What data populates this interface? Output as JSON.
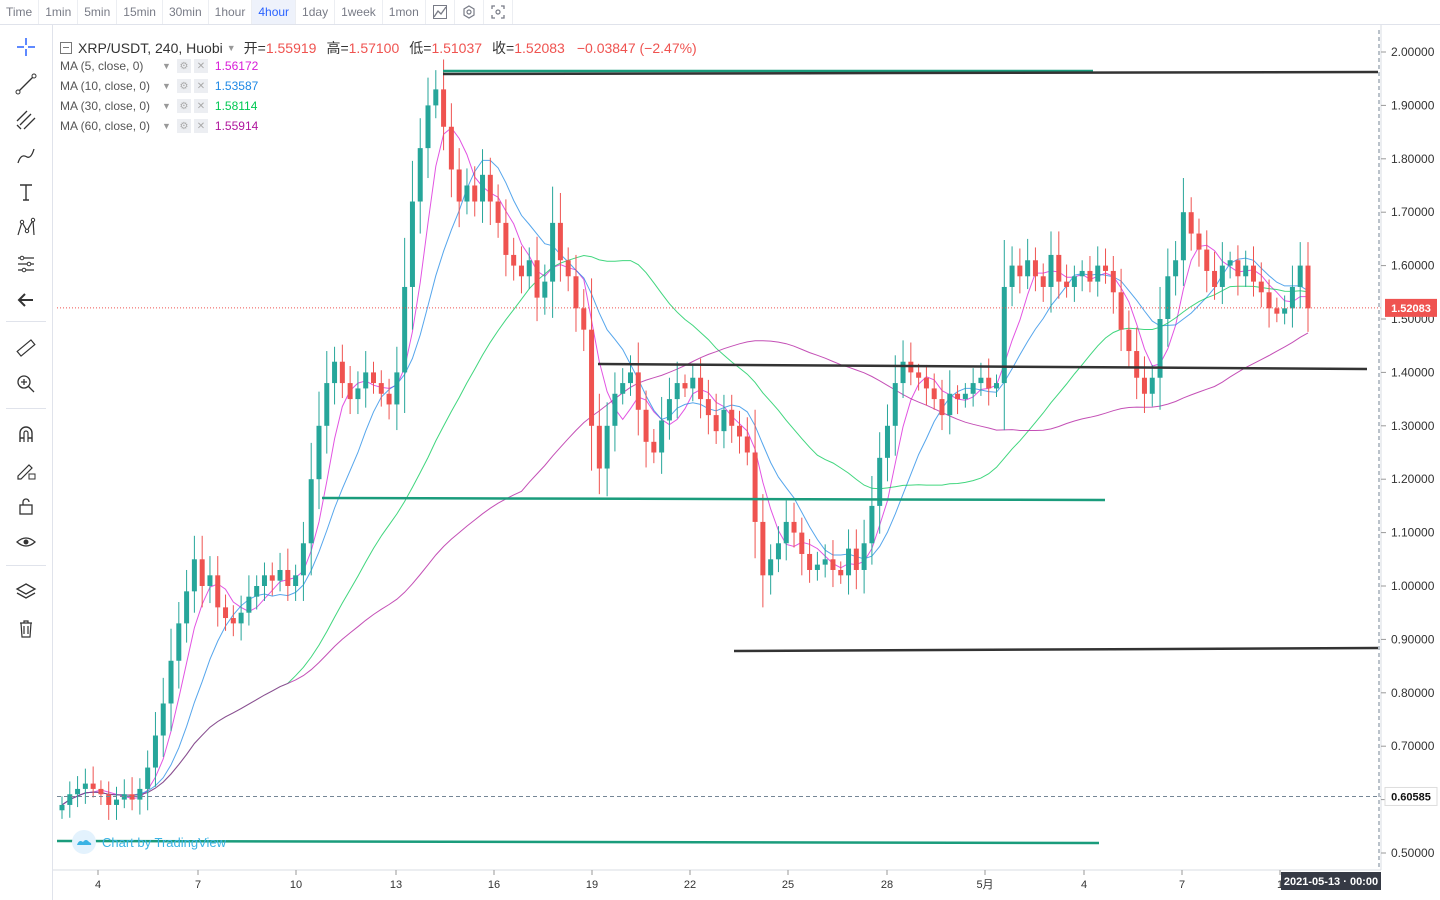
{
  "toolbar": {
    "timeframes": [
      "Time",
      "1min",
      "5min",
      "15min",
      "30min",
      "1hour",
      "4hour",
      "1day",
      "1week",
      "1mon"
    ],
    "active_timeframe": "4hour"
  },
  "header": {
    "symbol": "XRP/USDT, 240, Huobi",
    "open_label": "开=",
    "open_value": "1.55919",
    "high_label": "高=",
    "high_value": "1.57100",
    "low_label": "低=",
    "low_value": "1.51037",
    "close_label": "收=",
    "close_value": "1.52083",
    "change": "−0.03847 (−2.47%)"
  },
  "indicators": [
    {
      "label": "MA (5, close, 0)",
      "value": "1.56172",
      "color": "#d81bd8"
    },
    {
      "label": "MA (10, close, 0)",
      "value": "1.53587",
      "color": "#1e88e5"
    },
    {
      "label": "MA (30, close, 0)",
      "value": "1.58114",
      "color": "#00c853"
    },
    {
      "label": "MA (60, close, 0)",
      "value": "1.55914",
      "color": "#b0169e"
    }
  ],
  "watermark": "Chart by TradingView",
  "price_axis": {
    "ticks": [
      "2.00000",
      "1.90000",
      "1.80000",
      "1.70000",
      "1.60000",
      "1.50000",
      "1.40000",
      "1.30000",
      "1.20000",
      "1.10000",
      "1.00000",
      "0.90000",
      "0.80000",
      "0.70000",
      "0.60000",
      "0.50000"
    ],
    "last_price_label": "1.52083",
    "last_price": 1.52083,
    "crosshair_price_label": "0.60585",
    "crosshair_price": 0.60585
  },
  "time_axis": {
    "ticks": [
      "4",
      "7",
      "10",
      "13",
      "16",
      "19",
      "22",
      "25",
      "28",
      "5月",
      "4",
      "7",
      "1"
    ],
    "crosshair_time_label": "2021-05-13 · 00:00"
  },
  "colors": {
    "up": "#26a69a",
    "down": "#ef5350",
    "last_price_line": "#ef5350",
    "drawing_green": "#1a9c7c",
    "drawing_dark": "#333333"
  },
  "chart_data": {
    "type": "candlestick",
    "symbol": "XRP/USDT",
    "interval": "240",
    "y_range": [
      0.47,
      2.04
    ],
    "closes": [
      0.59,
      0.61,
      0.62,
      0.63,
      0.62,
      0.61,
      0.59,
      0.6,
      0.61,
      0.6,
      0.62,
      0.66,
      0.72,
      0.78,
      0.86,
      0.93,
      0.99,
      1.05,
      1.0,
      1.02,
      0.96,
      0.94,
      0.93,
      0.95,
      0.98,
      1.0,
      1.02,
      1.01,
      1.03,
      1.0,
      1.02,
      1.08,
      1.2,
      1.3,
      1.38,
      1.42,
      1.38,
      1.35,
      1.37,
      1.4,
      1.38,
      1.36,
      1.34,
      1.4,
      1.56,
      1.72,
      1.82,
      1.9,
      1.93,
      1.86,
      1.78,
      1.72,
      1.75,
      1.72,
      1.77,
      1.72,
      1.68,
      1.62,
      1.6,
      1.58,
      1.61,
      1.54,
      1.57,
      1.68,
      1.61,
      1.58,
      1.52,
      1.48,
      1.3,
      1.22,
      1.3,
      1.36,
      1.38,
      1.4,
      1.33,
      1.27,
      1.25,
      1.31,
      1.35,
      1.38,
      1.37,
      1.39,
      1.35,
      1.32,
      1.29,
      1.33,
      1.3,
      1.28,
      1.25,
      1.12,
      1.02,
      1.05,
      1.08,
      1.12,
      1.1,
      1.06,
      1.03,
      1.04,
      1.05,
      1.03,
      1.02,
      1.07,
      1.03,
      1.08,
      1.15,
      1.24,
      1.3,
      1.38,
      1.42,
      1.4,
      1.39,
      1.37,
      1.35,
      1.32,
      1.36,
      1.35,
      1.36,
      1.38,
      1.39,
      1.37,
      1.38,
      1.56,
      1.6,
      1.58,
      1.61,
      1.58,
      1.56,
      1.62,
      1.57,
      1.56,
      1.58,
      1.59,
      1.57,
      1.6,
      1.59,
      1.55,
      1.48,
      1.44,
      1.39,
      1.36,
      1.39,
      1.5,
      1.58,
      1.61,
      1.7,
      1.66,
      1.63,
      1.59,
      1.56,
      1.6,
      1.61,
      1.58,
      1.6,
      1.57,
      1.55,
      1.52,
      1.51,
      1.52,
      1.56,
      1.6,
      1.52
    ]
  }
}
